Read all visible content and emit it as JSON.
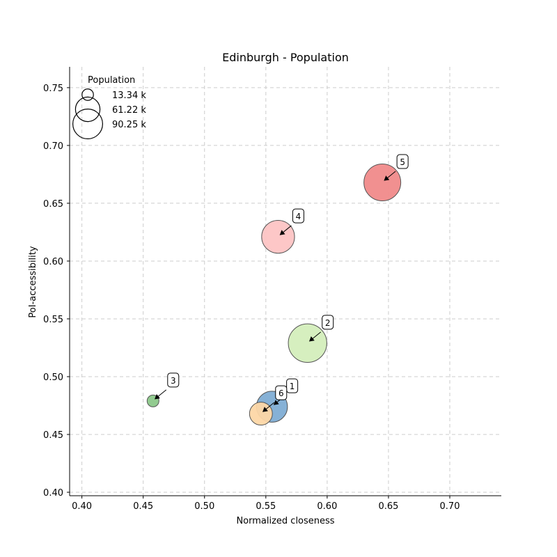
{
  "chart_data": {
    "type": "scatter",
    "title": "Edinburgh - Population",
    "xlabel": "Normalized closeness",
    "ylabel": "PoI-accessibility",
    "xlim": [
      0.39,
      0.742
    ],
    "ylim": [
      0.397,
      0.768
    ],
    "x_ticks": [
      0.4,
      0.45,
      0.5,
      0.55,
      0.6,
      0.65,
      0.7
    ],
    "y_ticks": [
      0.4,
      0.45,
      0.5,
      0.55,
      0.6,
      0.65,
      0.7,
      0.75
    ],
    "x_tick_labels": [
      "0.40",
      "0.45",
      "0.50",
      "0.55",
      "0.60",
      "0.65",
      "0.70"
    ],
    "y_tick_labels": [
      "0.40",
      "0.45",
      "0.50",
      "0.55",
      "0.60",
      "0.65",
      "0.70",
      "0.75"
    ],
    "grid": true,
    "legend": {
      "title": "Population",
      "placement": "top-left",
      "entries": [
        {
          "label": "13.34 k",
          "value": 13.34
        },
        {
          "label": "61.22 k",
          "value": 61.22
        },
        {
          "label": "90.25 k",
          "value": 90.25
        }
      ]
    },
    "points": [
      {
        "label": "1",
        "x": 0.555,
        "y": 0.474,
        "population": 55.0,
        "color": "#7fadd4"
      },
      {
        "label": "2",
        "x": 0.584,
        "y": 0.529,
        "population": 85.0,
        "color": "#d4eebc"
      },
      {
        "label": "3",
        "x": 0.458,
        "y": 0.479,
        "population": 8.0,
        "color": "#8cc88a"
      },
      {
        "label": "4",
        "x": 0.56,
        "y": 0.621,
        "population": 62.0,
        "color": "#fdc4c4"
      },
      {
        "label": "5",
        "x": 0.645,
        "y": 0.668,
        "population": 78.0,
        "color": "#f08a8a"
      },
      {
        "label": "6",
        "x": 0.546,
        "y": 0.468,
        "population": 30.0,
        "color": "#fdd7a6"
      }
    ]
  }
}
